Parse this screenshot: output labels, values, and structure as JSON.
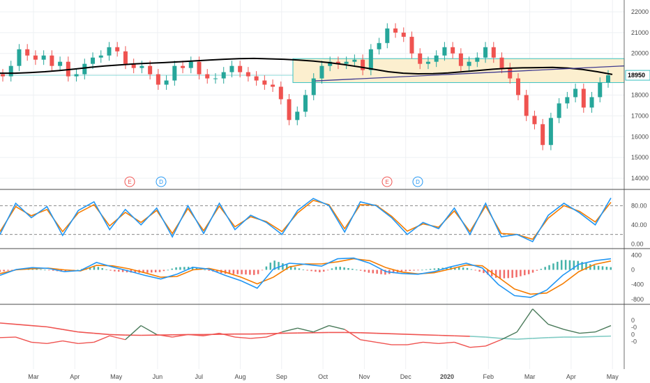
{
  "chart_data": {
    "type": "candlestick",
    "x_labels": [
      "Mar",
      "Apr",
      "May",
      "Jun",
      "Jul",
      "Aug",
      "Sep",
      "Oct",
      "Nov",
      "Dec",
      "2020",
      "Feb",
      "Mar",
      "Apr",
      "May"
    ],
    "price_panel": {
      "y_ticks": [
        "22000",
        "21000",
        "20000",
        "19000",
        "18000",
        "17000",
        "16000",
        "15000",
        "14000"
      ],
      "ylim": [
        13600,
        22300
      ],
      "last_price": "18950",
      "candle_closes": [
        18900,
        19400,
        20200,
        19900,
        19700,
        19900,
        19400,
        19600,
        18900,
        19000,
        19500,
        19800,
        19900,
        20300,
        20100,
        19500,
        19300,
        19400,
        19000,
        18500,
        18700,
        19400,
        19300,
        19600,
        19000,
        18800,
        18800,
        19100,
        19400,
        19100,
        18900,
        18700,
        18500,
        18400,
        17800,
        16800,
        17200,
        18000,
        18800,
        19400,
        19600,
        19500,
        19600,
        19700,
        19200,
        20200,
        20500,
        21200,
        21000,
        20800,
        20000,
        19500,
        19600,
        19900,
        20300,
        20000,
        19400,
        19600,
        19800,
        20300,
        19800,
        19300,
        18800,
        18000,
        17000,
        16600,
        15600,
        16900,
        17600,
        17900,
        18300,
        17400,
        17900,
        18600,
        18950
      ],
      "ma_200": [
        19050,
        19050,
        19080,
        19120,
        19180,
        19250,
        19330,
        19400,
        19450,
        19500,
        19530,
        19560,
        19600,
        19640,
        19680,
        19720,
        19750,
        19760,
        19740,
        19720,
        19680,
        19630,
        19560,
        19470,
        19360,
        19240,
        19120,
        19050,
        19020,
        19030,
        19060,
        19120,
        19180,
        19240,
        19290,
        19310,
        19320,
        19330,
        19300,
        19230,
        19120,
        18990
      ],
      "trendline": [
        18680,
        19400
      ],
      "box_range": [
        18600,
        19750
      ],
      "events": [
        "E",
        "D",
        "E",
        "D"
      ]
    },
    "stochastic_panel": {
      "y_ticks": [
        "80.00",
        "40.00",
        "0.00"
      ],
      "ylim": [
        -8,
        108
      ],
      "levels": [
        80,
        20
      ],
      "k": [
        20,
        85,
        55,
        78,
        18,
        70,
        88,
        30,
        72,
        40,
        75,
        15,
        80,
        22,
        85,
        30,
        60,
        45,
        20,
        70,
        95,
        80,
        25,
        88,
        80,
        55,
        20,
        45,
        32,
        75,
        20,
        85,
        15,
        20,
        5,
        60,
        85,
        65,
        40,
        96
      ],
      "d": [
        26,
        78,
        59,
        72,
        26,
        65,
        82,
        38,
        66,
        45,
        70,
        22,
        74,
        28,
        79,
        36,
        57,
        47,
        26,
        65,
        91,
        82,
        32,
        82,
        81,
        58,
        27,
        42,
        35,
        69,
        26,
        79,
        22,
        20,
        10,
        54,
        80,
        68,
        46,
        87
      ]
    },
    "macd_panel": {
      "y_ticks": [
        "400",
        "0",
        "-400",
        "-800"
      ],
      "ylim": [
        -880,
        520
      ],
      "macd": [
        -150,
        10,
        60,
        40,
        -50,
        -20,
        200,
        80,
        -30,
        -150,
        -250,
        -120,
        70,
        20,
        -150,
        -300,
        -500,
        20,
        180,
        150,
        100,
        300,
        320,
        180,
        -50,
        -100,
        -120,
        -50,
        80,
        180,
        50,
        -400,
        -700,
        -750,
        -550,
        -150,
        150,
        250,
        300
      ],
      "signal": [
        -100,
        0,
        30,
        45,
        0,
        -30,
        120,
        110,
        30,
        -80,
        -200,
        -180,
        0,
        40,
        -60,
        -200,
        -380,
        -200,
        80,
        160,
        160,
        220,
        300,
        250,
        60,
        -60,
        -110,
        -80,
        20,
        130,
        110,
        -200,
        -520,
        -660,
        -630,
        -380,
        -50,
        150,
        240
      ]
    },
    "relstrength_panel": {
      "y_ticks": [
        "0",
        "-0",
        "0",
        "-0"
      ],
      "ylim": [
        -1.35,
        1.1
      ],
      "strength": [
        -0.12,
        -0.1,
        -0.3,
        -0.35,
        -0.25,
        -0.35,
        -0.3,
        -0.05,
        -0.2,
        0.35,
        0.0,
        -0.1,
        0.0,
        -0.05,
        0.05,
        -0.1,
        -0.15,
        -0.1,
        0.1,
        0.25,
        0.1,
        0.35,
        0.2,
        -0.2,
        -0.3,
        -0.4,
        -0.4,
        -0.3,
        -0.35,
        -0.3,
        -0.5,
        -0.45,
        -0.2,
        0.1,
        1.0,
        0.4,
        0.2,
        0.05,
        0.1,
        0.35
      ],
      "strength_ma": [
        0.45,
        0.4,
        0.35,
        0.3,
        0.2,
        0.1,
        0.05,
        0.0,
        -0.02,
        -0.03,
        -0.02,
        -0.01,
        0.0,
        0.0,
        0.01,
        0.02,
        0.02,
        0.03,
        0.05,
        0.06,
        0.07,
        0.08,
        0.08,
        0.07,
        0.05,
        0.03,
        0.01,
        -0.01,
        -0.03,
        -0.05,
        -0.07,
        -0.1,
        -0.15,
        -0.18,
        -0.15,
        -0.12,
        -0.1,
        -0.1,
        -0.08,
        -0.06
      ]
    }
  },
  "colors": {
    "up": "#26a69a",
    "down": "#ef5350",
    "ma": "#000000",
    "trendline": "#3f3a8f",
    "box_fill": "#fcefcf",
    "box_stroke": "#37c0c0",
    "stoch_k": "#2196f3",
    "stoch_d": "#f57c00",
    "rs_line": "#4a7a5a",
    "rs_up": "#80cbc4",
    "rs_down": "#ef5350",
    "grid": "#eef0f3",
    "sep": "#4a4a4a"
  }
}
